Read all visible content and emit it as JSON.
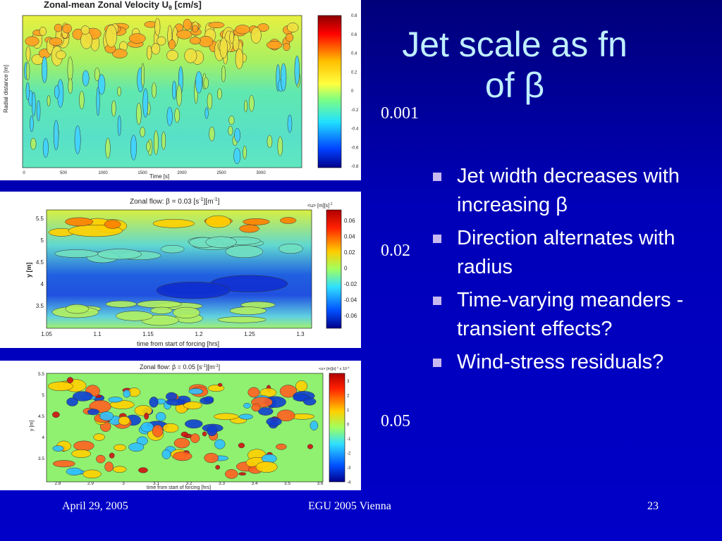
{
  "slide": {
    "title_line1": "Jet scale as fn",
    "title_line2": "of β",
    "bullets": [
      "Jet width decreases with increasing β",
      "Direction alternates with radius",
      "Time-varying meanders - transient effects?",
      "Wind-stress residuals?"
    ],
    "beta_labels": [
      "0.001",
      "0.02",
      "0.05"
    ],
    "footer": {
      "date": "April 29, 2005",
      "event": "EGU 2005 Vienna",
      "page": "23"
    }
  },
  "colors": {
    "background": "#0000c0",
    "title": "#bfefff",
    "text": "#ffffff",
    "bullet": "#c8b8f0"
  },
  "chart_data": [
    {
      "type": "heatmap",
      "title": "Zonal-mean Zonal Velocity U",
      "title_sub": "θ",
      "title_unit": "[cm/s]",
      "ylabel": "Radial distance [m]",
      "xlabel": "Time [s]",
      "x_ticks": [
        "0",
        "500",
        "1000",
        "1500",
        "2000",
        "2500",
        "3000"
      ],
      "colorbar_ticks": [
        "0.8",
        "0.6",
        "0.4",
        "0.2",
        "0",
        "-0.2",
        "-0.4",
        "-0.6",
        "-0.8"
      ]
    },
    {
      "type": "heatmap",
      "title": "Zonal flow: β = 0.03 [s",
      "title_sup1": "-1",
      "title_mid": "][m",
      "title_sup2": "-1",
      "title_end": "]",
      "colorbar_label": "<u> [m][s]",
      "colorbar_label_sup": "-1",
      "xlabel": "time from start of forcing [hrs]",
      "ylabel": "y [m]",
      "x_ticks": [
        "1.05",
        "1.1",
        "1.15",
        "1.2",
        "1.25",
        "1.3"
      ],
      "y_ticks": [
        "5.5",
        "5",
        "4.5",
        "4",
        "3.5"
      ],
      "colorbar_ticks": [
        "0.06",
        "0.04",
        "0.02",
        "0",
        "-0.02",
        "-0.04",
        "-0.06"
      ]
    },
    {
      "type": "heatmap",
      "title": "Zonal flow: β = 0.05 [s",
      "title_sup1": "-1",
      "title_mid": "][m",
      "title_sup2": "-1",
      "title_end": "]",
      "colorbar_label": "<u> [m][s]",
      "colorbar_label_sup": "-1",
      "colorbar_label_end": " x 10",
      "colorbar_label_sup2": "-3",
      "xlabel": "time from start of forcing [hrs]",
      "ylabel": "y [m]",
      "x_ticks": [
        "2.8",
        "2.9",
        "3",
        "3.1",
        "3.2",
        "3.3",
        "3.4",
        "3.5",
        "3.6"
      ],
      "y_ticks": [
        "5.5",
        "5",
        "4.5",
        "4",
        "3.5"
      ],
      "colorbar_ticks": [
        "3",
        "2",
        "1",
        "0",
        "-1",
        "-2",
        "-3",
        "-4"
      ]
    }
  ]
}
